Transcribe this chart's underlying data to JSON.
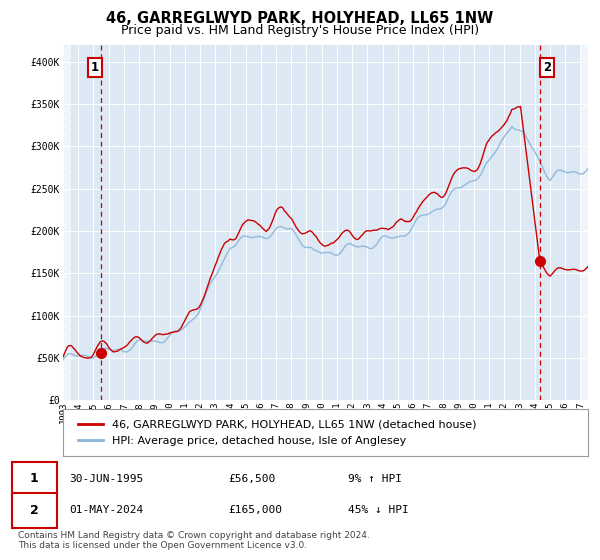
{
  "title": "46, GARREGLWYD PARK, HOLYHEAD, LL65 1NW",
  "subtitle": "Price paid vs. HM Land Registry's House Price Index (HPI)",
  "ylim": [
    0,
    420000
  ],
  "xlim_start": 1993.0,
  "xlim_end": 2027.5,
  "yticks": [
    0,
    50000,
    100000,
    150000,
    200000,
    250000,
    300000,
    350000,
    400000
  ],
  "ytick_labels": [
    "£0",
    "£50K",
    "£100K",
    "£150K",
    "£200K",
    "£250K",
    "£300K",
    "£350K",
    "£400K"
  ],
  "plot_bg_color": "#dce9f5",
  "grid_color": "#ffffff",
  "hpi_line_color": "#8ab4d8",
  "price_line_color": "#cc0000",
  "marker_color": "#cc0000",
  "vline_color": "#cc0000",
  "point1_year": 1995.5,
  "point1_value": 56500,
  "point2_year": 2024.33,
  "point2_value": 165000,
  "legend_label1": "46, GARREGLWYD PARK, HOLYHEAD, LL65 1NW (detached house)",
  "legend_label2": "HPI: Average price, detached house, Isle of Anglesey",
  "table_row1": [
    "1",
    "30-JUN-1995",
    "£56,500",
    "9% ↑ HPI"
  ],
  "table_row2": [
    "2",
    "01-MAY-2024",
    "£165,000",
    "45% ↓ HPI"
  ],
  "footer": "Contains HM Land Registry data © Crown copyright and database right 2024.\nThis data is licensed under the Open Government Licence v3.0.",
  "xticks": [
    1993,
    1994,
    1995,
    1996,
    1997,
    1998,
    1999,
    2000,
    2001,
    2002,
    2003,
    2004,
    2005,
    2006,
    2007,
    2008,
    2009,
    2010,
    2011,
    2012,
    2013,
    2014,
    2015,
    2016,
    2017,
    2018,
    2019,
    2020,
    2021,
    2022,
    2023,
    2024,
    2025,
    2026,
    2027
  ],
  "title_fontsize": 10.5,
  "subtitle_fontsize": 9,
  "tick_fontsize": 7,
  "legend_fontsize": 8,
  "footer_fontsize": 6.5
}
